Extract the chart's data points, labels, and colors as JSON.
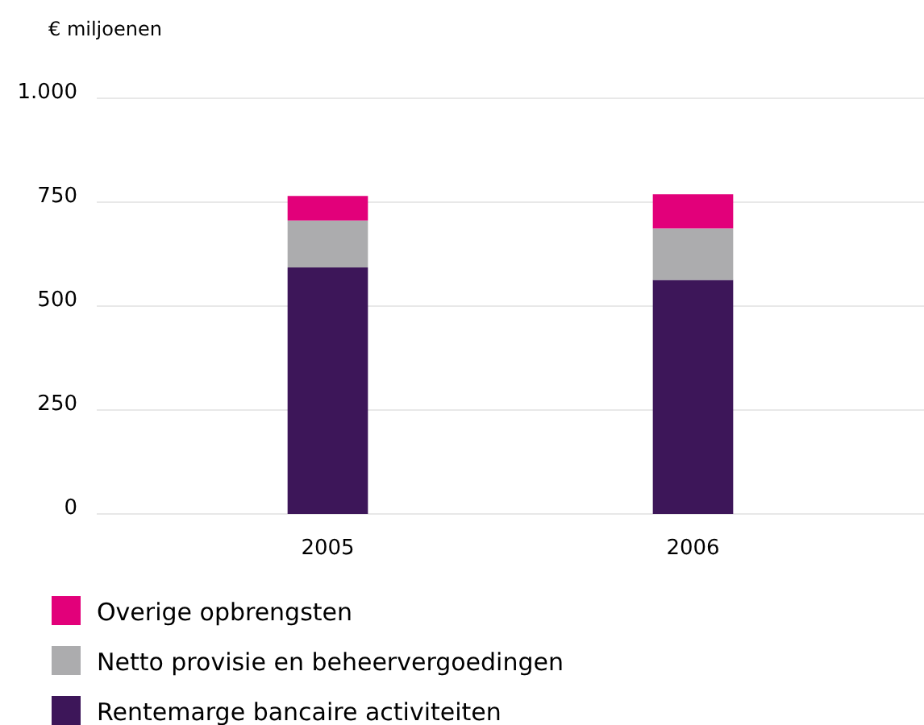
{
  "chart_data": {
    "type": "bar",
    "stacked": true,
    "ylabel": "€ miljoenen",
    "categories": [
      "2005",
      "2006"
    ],
    "series": [
      {
        "name": "Rentemarge bancaire activiteiten",
        "color": "#3d1659",
        "values": [
          593,
          563
        ]
      },
      {
        "name": "Netto provisie en beheervergoedingen",
        "color": "#acacae",
        "values": [
          113,
          124
        ]
      },
      {
        "name": "Overige opbrengsten",
        "color": "#e2007a",
        "values": [
          59,
          82
        ]
      }
    ],
    "ylim": [
      0,
      1000
    ],
    "yticks": [
      0,
      250,
      500,
      750,
      {
        "value": 1000,
        "label": "1.000"
      }
    ],
    "grid": "y",
    "legend": "bottom left"
  }
}
